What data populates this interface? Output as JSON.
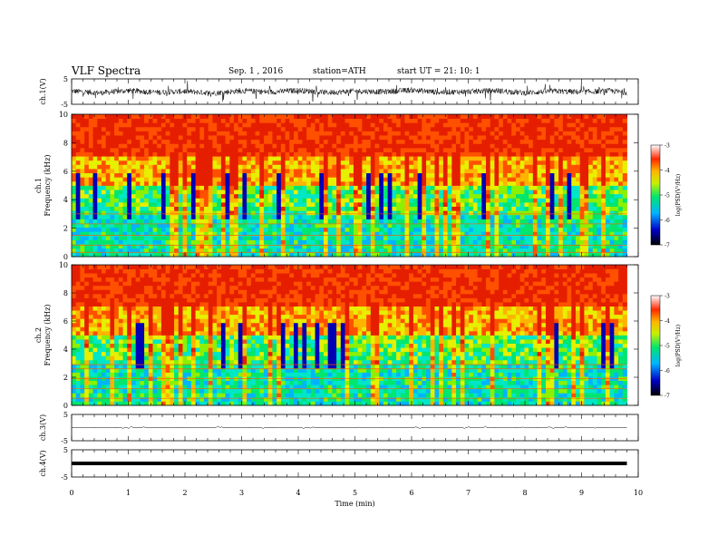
{
  "header": {
    "title": "VLF Spectra",
    "date": "Sep. 1 , 2016",
    "station": "station=ATH",
    "start": "start UT = 21: 10: 1"
  },
  "chart_data": [
    {
      "type": "line",
      "ylabel": "ch.1(V)",
      "ylim": [
        -5,
        5
      ],
      "yticks": [
        "5",
        "-5"
      ],
      "x": [
        0,
        0.5,
        1,
        1.5,
        2,
        2.5,
        3,
        3.5,
        4,
        4.5,
        5,
        5.5,
        6,
        6.5,
        7,
        7.5,
        8,
        8.5,
        9,
        9.5,
        9.8
      ],
      "y": [
        0.2,
        -0.5,
        0.4,
        -0.3,
        0.1,
        -0.6,
        0.3,
        -0.2,
        0.5,
        -0.4,
        0.2,
        -0.1,
        0.6,
        -0.3,
        0.0,
        0.4,
        -0.5,
        0.2,
        -0.2,
        0.3,
        -0.4
      ],
      "grid": false
    },
    {
      "type": "heatmap",
      "ylabel": "ch.1\nFrequency (kHz)",
      "ylabel_lines": [
        "ch.1",
        "Frequency (kHz)"
      ],
      "ylim": [
        0,
        10
      ],
      "yticks": [
        "0",
        "2",
        "4",
        "6",
        "8",
        "10"
      ],
      "xlim": [
        0,
        10
      ],
      "colorbar": {
        "label": "log(PSD(V²/Hz)",
        "ticks": [
          "-3",
          "-4",
          "-5",
          "-6",
          "-7"
        ],
        "range": [
          -7,
          -3
        ]
      }
    },
    {
      "type": "heatmap",
      "ylabel": "ch.2\nFrequency (kHz)",
      "ylabel_lines": [
        "ch.2",
        "Frequency (kHz)"
      ],
      "ylim": [
        0,
        10
      ],
      "yticks": [
        "0",
        "2",
        "4",
        "6",
        "8",
        "10"
      ],
      "xlim": [
        0,
        10
      ],
      "colorbar": {
        "label": "log(PSD(V²/Hz)",
        "ticks": [
          "-3",
          "-4",
          "-5",
          "-6",
          "-7"
        ],
        "range": [
          -7,
          -3
        ]
      }
    },
    {
      "type": "line",
      "ylabel": "ch.3(V)",
      "ylim": [
        -5,
        5
      ],
      "yticks": [
        "5",
        "-5"
      ],
      "x": [
        0,
        9.8
      ],
      "y": [
        0,
        0
      ],
      "grid": false
    },
    {
      "type": "line",
      "ylabel": "ch.4(V)",
      "ylim": [
        -5,
        5
      ],
      "yticks": [
        "5",
        "-5"
      ],
      "x": [
        0,
        9.8
      ],
      "y": [
        0,
        0
      ],
      "grid": false
    }
  ],
  "xaxis": {
    "label": "Time (min)",
    "ticks": [
      "0",
      "1",
      "2",
      "3",
      "4",
      "5",
      "6",
      "7",
      "8",
      "9",
      "10"
    ],
    "xlim": [
      0,
      10
    ]
  }
}
